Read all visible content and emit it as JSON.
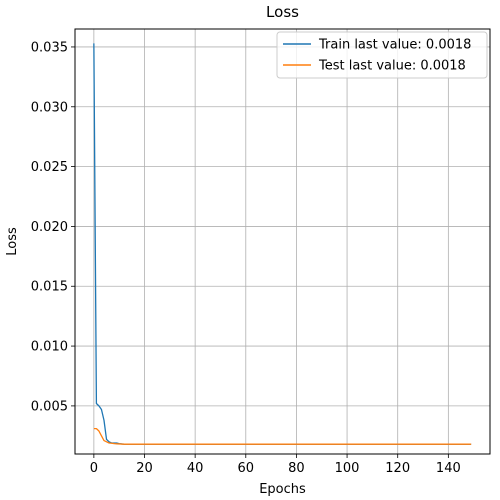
{
  "chart_data": {
    "type": "line",
    "title": "Loss",
    "xlabel": "Epochs",
    "ylabel": "Loss",
    "xlim": [
      -7.45,
      156.45
    ],
    "ylim": [
      0.00098,
      0.0365
    ],
    "grid": true,
    "legend_position": "top-right",
    "x_ticks": [
      0,
      20,
      40,
      60,
      80,
      100,
      120,
      140
    ],
    "x_tick_labels": [
      "0",
      "20",
      "40",
      "60",
      "80",
      "100",
      "120",
      "140"
    ],
    "y_ticks": [
      0.005,
      0.01,
      0.015,
      0.02,
      0.025,
      0.03,
      0.035
    ],
    "y_tick_labels": [
      "0.005",
      "0.010",
      "0.015",
      "0.020",
      "0.025",
      "0.030",
      "0.035"
    ],
    "series": [
      {
        "name": "Train last value: 0.0018",
        "color": "#1f77b4",
        "x": [
          0,
          1,
          2,
          3,
          4,
          5,
          6,
          7,
          8,
          9,
          10,
          11,
          12,
          14,
          16,
          20,
          30,
          50,
          80,
          110,
          140,
          149
        ],
        "y": [
          0.0353,
          0.0052,
          0.005,
          0.0047,
          0.0038,
          0.0022,
          0.002,
          0.0019,
          0.0019,
          0.0019,
          0.00185,
          0.00182,
          0.0018,
          0.0018,
          0.0018,
          0.0018,
          0.0018,
          0.0018,
          0.0018,
          0.0018,
          0.0018,
          0.0018
        ]
      },
      {
        "name": "Test last value: 0.0018",
        "color": "#ff7f0e",
        "x": [
          0,
          1,
          2,
          3,
          4,
          5,
          6,
          7,
          8,
          9,
          10,
          11,
          12,
          14,
          16,
          20,
          30,
          50,
          80,
          110,
          140,
          149
        ],
        "y": [
          0.0031,
          0.0031,
          0.0029,
          0.0025,
          0.0021,
          0.002,
          0.0019,
          0.00188,
          0.00185,
          0.00183,
          0.00182,
          0.00181,
          0.0018,
          0.0018,
          0.0018,
          0.0018,
          0.0018,
          0.0018,
          0.0018,
          0.0018,
          0.0018,
          0.0018
        ]
      }
    ]
  }
}
